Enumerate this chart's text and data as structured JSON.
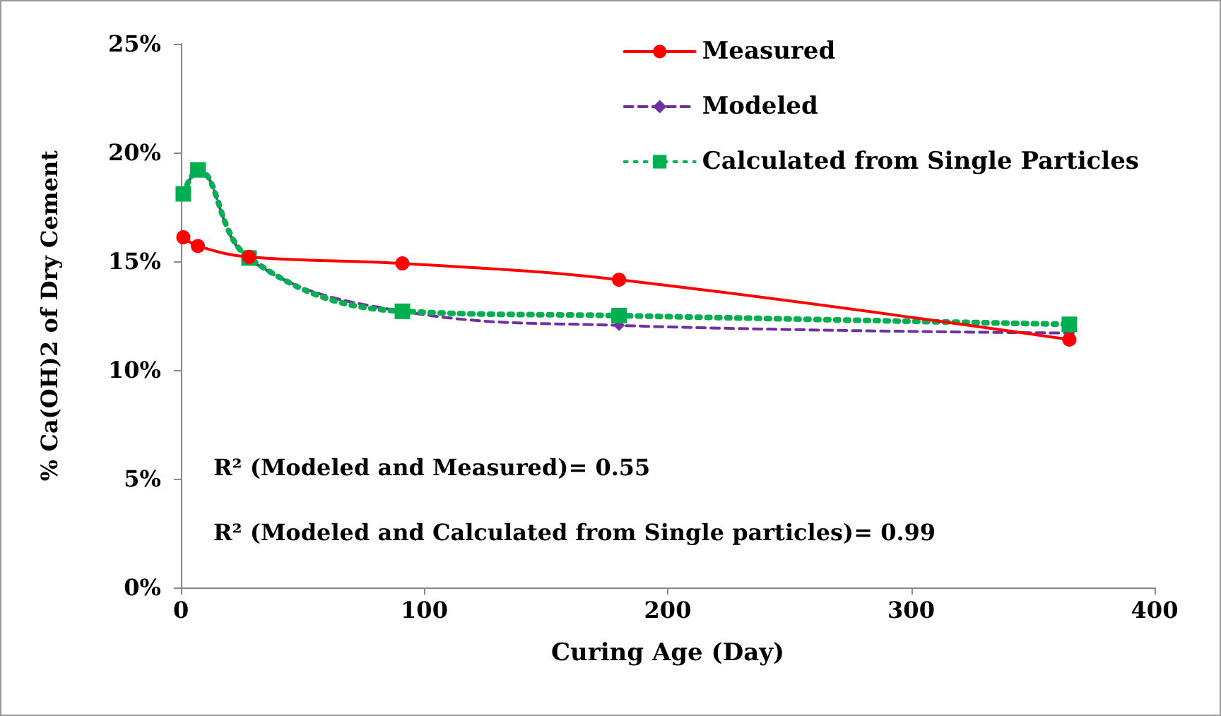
{
  "chart_data": {
    "type": "line",
    "xlabel": "Curing Age (Day)",
    "ylabel": "% Ca(OH)2 of Dry Cement",
    "x": [
      1,
      7,
      28,
      91,
      180,
      365
    ],
    "series": [
      {
        "name": "Measured",
        "color": "#ff0000",
        "marker": "circle",
        "line_style": "solid",
        "values": [
          16.1,
          15.7,
          15.2,
          14.9,
          14.15,
          11.4
        ]
      },
      {
        "name": "Modeled",
        "color": "#7030a0",
        "marker": "diamond",
        "line_style": "dashed",
        "values": [
          18.1,
          19.2,
          15.1,
          12.7,
          12.05,
          11.7
        ]
      },
      {
        "name": "Calculated from Single Particles",
        "color": "#00b050",
        "marker": "square",
        "line_style": "dotted",
        "values": [
          18.1,
          19.2,
          15.15,
          12.7,
          12.5,
          12.1
        ]
      }
    ],
    "xlim": [
      0,
      400
    ],
    "xticks": [
      0,
      100,
      200,
      300,
      400
    ],
    "ylim": [
      0,
      25
    ],
    "yticks": [
      {
        "value": 0,
        "label": "0%"
      },
      {
        "value": 5,
        "label": "5%"
      },
      {
        "value": 10,
        "label": "10%"
      },
      {
        "value": 15,
        "label": "15%"
      },
      {
        "value": 20,
        "label": "20%"
      },
      {
        "value": 25,
        "label": "25%"
      }
    ],
    "annotations": [
      "R² (Modeled and Measured)= 0.55",
      "R² (Modeled and Calculated from Single particles)= 0.99"
    ],
    "grid": false,
    "legend": "top right"
  }
}
